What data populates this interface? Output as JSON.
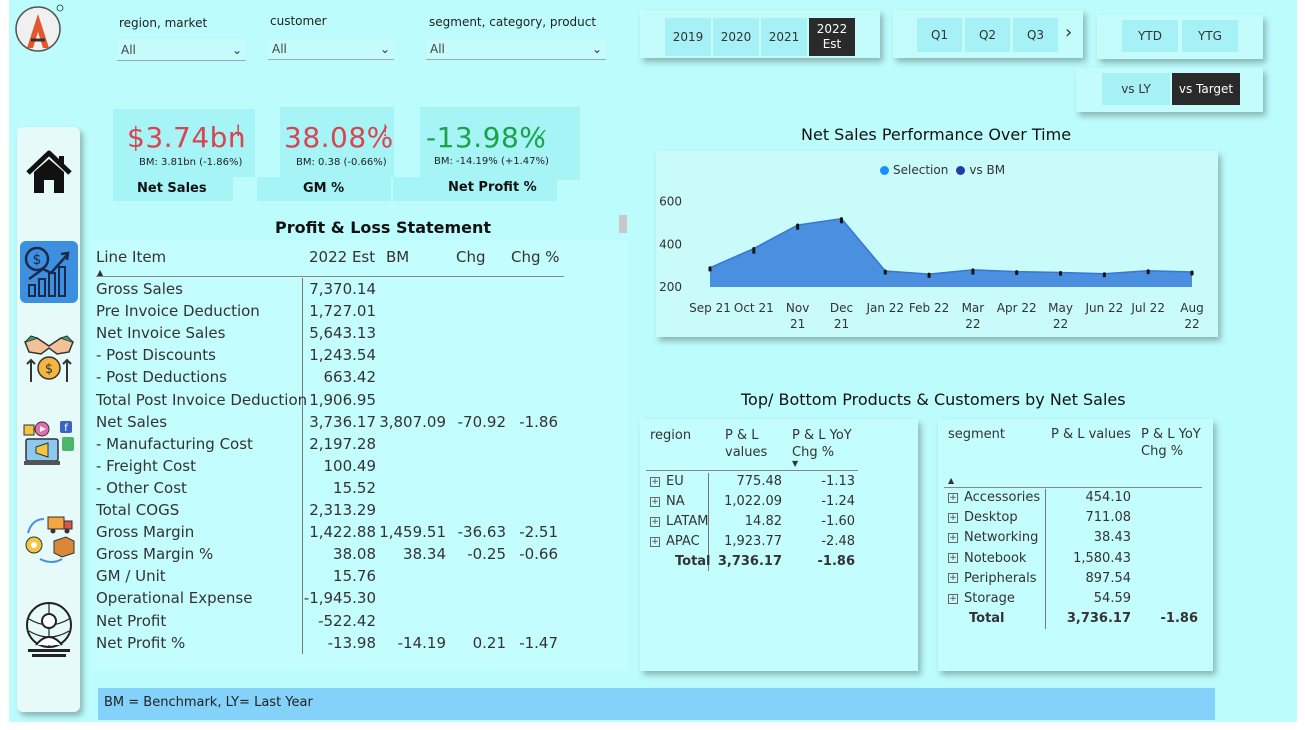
{
  "filters": {
    "region_market": {
      "label": "region, market",
      "value": "All"
    },
    "customer": {
      "label": "customer",
      "value": "All"
    },
    "segment_category_product": {
      "label": "segment, category, product",
      "value": "All"
    }
  },
  "years": [
    "2019",
    "2020",
    "2021",
    "2022 Est"
  ],
  "selected_year": "2022 Est",
  "quarters": [
    "Q1",
    "Q2",
    "Q3"
  ],
  "ytd_buttons": [
    "YTD",
    "YTG"
  ],
  "compare_buttons": [
    "vs LY",
    "vs Target"
  ],
  "selected_compare": "vs Target",
  "kpis": [
    {
      "value": "$3.74bn",
      "flag": "!",
      "bm": "BM: 3.81bn (-1.86%)",
      "label": "Net Sales",
      "color": "#d64550"
    },
    {
      "value": "38.08%",
      "flag": "!",
      "bm": "BM: 0.38 (-0.66%)",
      "label": "GM %",
      "color": "#d64550"
    },
    {
      "value": "-13.98%",
      "flag": "✓",
      "bm": "BM: -14.19% (+1.47%)",
      "label": "Net Profit  %",
      "color": "#1aa34a"
    }
  ],
  "pl": {
    "title": "Profit & Loss Statement",
    "headers": [
      "Line Item",
      "2022 Est",
      "BM",
      "Chg",
      "Chg %"
    ],
    "rows": [
      {
        "label": "Gross Sales",
        "v": "7,370.14",
        "bm": "",
        "chg": "",
        "pct": ""
      },
      {
        "label": "Pre Invoice Deduction",
        "v": "1,727.01",
        "bm": "",
        "chg": "",
        "pct": ""
      },
      {
        "label": "Net Invoice Sales",
        "v": "5,643.13",
        "bm": "",
        "chg": "",
        "pct": ""
      },
      {
        "label": "- Post Discounts",
        "v": "1,243.54",
        "bm": "",
        "chg": "",
        "pct": ""
      },
      {
        "label": "- Post Deductions",
        "v": "663.42",
        "bm": "",
        "chg": "",
        "pct": ""
      },
      {
        "label": "Total Post Invoice Deduction",
        "v": "1,906.95",
        "bm": "",
        "chg": "",
        "pct": ""
      },
      {
        "label": "Net Sales",
        "v": "3,736.17",
        "bm": "3,807.09",
        "chg": "-70.92",
        "pct": "-1.86"
      },
      {
        "label": "- Manufacturing Cost",
        "v": "2,197.28",
        "bm": "",
        "chg": "",
        "pct": ""
      },
      {
        "label": "- Freight Cost",
        "v": "100.49",
        "bm": "",
        "chg": "",
        "pct": ""
      },
      {
        "label": "- Other Cost",
        "v": "15.52",
        "bm": "",
        "chg": "",
        "pct": ""
      },
      {
        "label": "Total COGS",
        "v": "2,313.29",
        "bm": "",
        "chg": "",
        "pct": ""
      },
      {
        "label": "Gross Margin",
        "v": "1,422.88",
        "bm": "1,459.51",
        "chg": "-36.63",
        "pct": "-2.51"
      },
      {
        "label": "Gross Margin %",
        "v": "38.08",
        "bm": "38.34",
        "chg": "-0.25",
        "pct": "-0.66"
      },
      {
        "label": "GM / Unit",
        "v": "15.76",
        "bm": "",
        "chg": "",
        "pct": ""
      },
      {
        "label": "Operational Expense",
        "v": "-1,945.30",
        "bm": "",
        "chg": "",
        "pct": ""
      },
      {
        "label": "Net Profit",
        "v": "-522.42",
        "bm": "",
        "chg": "",
        "pct": ""
      },
      {
        "label": "Net Profit %",
        "v": "-13.98",
        "bm": "-14.19",
        "chg": "0.21",
        "pct": "-1.47"
      }
    ]
  },
  "chart": {
    "title": "Net Sales Performance Over Time",
    "legend": [
      "Selection",
      "vs BM"
    ],
    "legend_colors": [
      "#1a8cff",
      "#1f3ea8"
    ],
    "area_color": "#4a8fe0",
    "y_ticks": [
      "600",
      "400",
      "200"
    ],
    "x_labels": [
      [
        "Sep 21"
      ],
      [
        "Oct 21"
      ],
      [
        "Nov",
        "21"
      ],
      [
        "Dec",
        "21"
      ],
      [
        "Jan 22"
      ],
      [
        "Feb 22"
      ],
      [
        "Mar",
        "22"
      ],
      [
        "Apr 22"
      ],
      [
        "May",
        "22"
      ],
      [
        "Jun 22"
      ],
      [
        "Jul 22"
      ],
      [
        "Aug",
        "22"
      ]
    ]
  },
  "chart_data": {
    "type": "area",
    "title": "Net Sales Performance Over Time",
    "categories": [
      "Sep 21",
      "Oct 21",
      "Nov 21",
      "Dec 21",
      "Jan 22",
      "Feb 22",
      "Mar 22",
      "Apr 22",
      "May 22",
      "Jun 22",
      "Jul 22",
      "Aug 22"
    ],
    "series": [
      {
        "name": "Selection",
        "values": [
          290,
          380,
          490,
          520,
          275,
          260,
          280,
          272,
          268,
          262,
          276,
          270
        ]
      },
      {
        "name": "vs BM",
        "values": [
          285,
          368,
          480,
          510,
          270,
          255,
          270,
          268,
          265,
          258,
          272,
          266
        ]
      }
    ],
    "y_ticks": [
      200,
      400,
      600
    ],
    "ylim": [
      200,
      640
    ],
    "legend": "top"
  },
  "top_bottom": {
    "title": "Top/ Bottom Products & Customers by Net Sales",
    "region_table": {
      "headers": [
        "region",
        "P & L values",
        "P & L YoY Chg %"
      ],
      "rows": [
        {
          "name": "EU",
          "value": "775.48",
          "chg": "-1.13"
        },
        {
          "name": "NA",
          "value": "1,022.09",
          "chg": "-1.24"
        },
        {
          "name": "LATAM",
          "value": "14.82",
          "chg": "-1.60"
        },
        {
          "name": "APAC",
          "value": "1,923.77",
          "chg": "-2.48"
        }
      ],
      "total": {
        "name": "Total",
        "value": "3,736.17",
        "chg": "-1.86"
      }
    },
    "segment_table": {
      "headers": [
        "segment",
        "P & L values",
        "P & L YoY Chg %"
      ],
      "rows": [
        {
          "name": "Accessories",
          "value": "454.10",
          "chg": ""
        },
        {
          "name": "Desktop",
          "value": "711.08",
          "chg": ""
        },
        {
          "name": "Networking",
          "value": "38.43",
          "chg": ""
        },
        {
          "name": "Notebook",
          "value": "1,580.43",
          "chg": ""
        },
        {
          "name": "Peripherals",
          "value": "897.54",
          "chg": ""
        },
        {
          "name": "Storage",
          "value": "54.59",
          "chg": ""
        }
      ],
      "total": {
        "name": "Total",
        "value": "3,736.17",
        "chg": "-1.86"
      }
    }
  },
  "footer": "BM = Benchmark, LY= Last Year",
  "nav_icons": [
    "home-icon",
    "finance-growth-icon",
    "handshake-money-icon",
    "marketing-icon",
    "supply-chain-icon",
    "executive-icon"
  ]
}
